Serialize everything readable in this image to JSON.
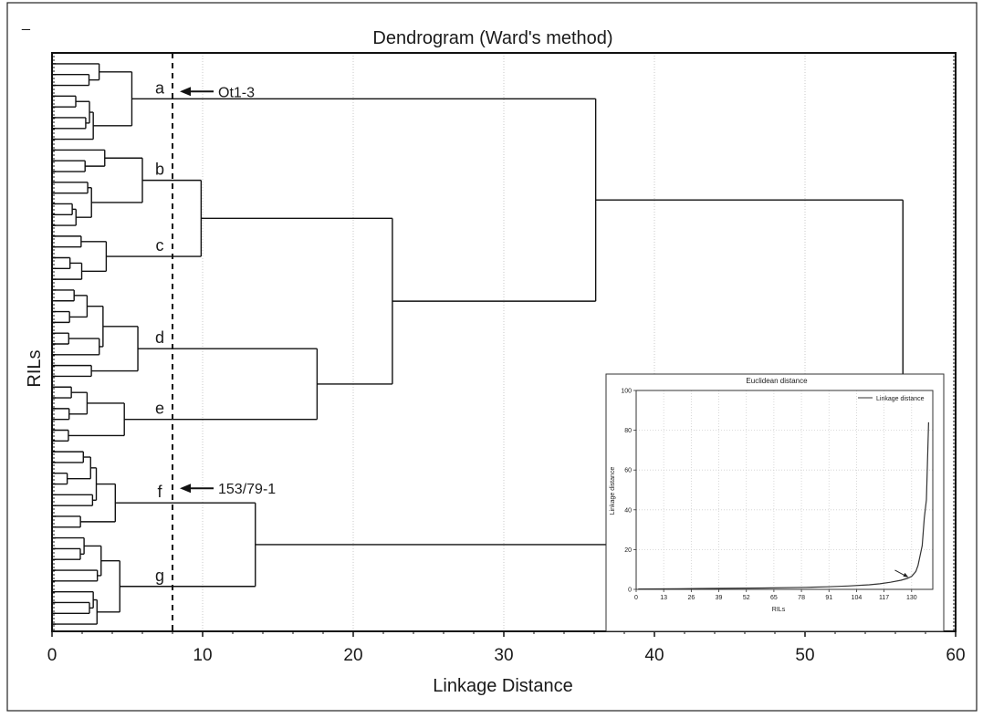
{
  "corner_mark": "_",
  "chart_data": [
    {
      "type": "dendrogram",
      "title": "Dendrogram (Ward's method)",
      "xlabel": "Linkage Distance",
      "ylabel": "RILs",
      "xlim": [
        0,
        60
      ],
      "xticks": [
        0,
        10,
        20,
        30,
        40,
        50,
        60
      ],
      "grid": "vertical gridlines",
      "cutoff_line": {
        "x": 8,
        "style": "dashed"
      },
      "clusters": [
        {
          "label": "a",
          "join_height": 5.3
        },
        {
          "label": "b",
          "join_height": 6.0
        },
        {
          "label": "c",
          "join_height": 3.6
        },
        {
          "label": "d",
          "join_height": 5.7
        },
        {
          "label": "e",
          "join_height": 4.8
        },
        {
          "label": "f",
          "join_height": 4.2
        },
        {
          "label": "g",
          "join_height": 4.5
        }
      ],
      "merges": [
        {
          "children": [
            "b",
            "c"
          ],
          "height": 9.9
        },
        {
          "children": [
            "d",
            "e"
          ],
          "height": 17.6
        },
        {
          "children": [
            "bc",
            "de"
          ],
          "height": 22.6
        },
        {
          "children": [
            "a",
            "bcde"
          ],
          "height": 36.1
        },
        {
          "children": [
            "f",
            "g"
          ],
          "height": 13.5
        },
        {
          "children": [
            "abcde",
            "fg"
          ],
          "height": 56.5
        }
      ],
      "annotations": [
        {
          "text": "Ot1-3",
          "points_to": "cluster a"
        },
        {
          "text": "153/79-1",
          "points_to": "cluster f"
        }
      ]
    },
    {
      "type": "line",
      "title": "Euclidean distance",
      "xlabel": "RILs",
      "ylabel": "Linkage distance",
      "legend": "Linkage distance",
      "legend_position": "top-right",
      "xlim": [
        0,
        140
      ],
      "ylim": [
        0,
        100
      ],
      "xticks": [
        0,
        13,
        26,
        39,
        52,
        65,
        78,
        91,
        104,
        117,
        130
      ],
      "yticks": [
        0,
        20,
        40,
        60,
        80,
        100
      ],
      "series": [
        {
          "name": "Linkage distance",
          "x": [
            1,
            20,
            40,
            60,
            80,
            90,
            100,
            110,
            115,
            120,
            125,
            128,
            130,
            132,
            133,
            134,
            135,
            136,
            137,
            138
          ],
          "y": [
            0.2,
            0.3,
            0.5,
            0.7,
            1.0,
            1.3,
            1.7,
            2.3,
            2.8,
            3.6,
            4.6,
            5.5,
            6.5,
            9,
            12,
            17,
            22,
            36,
            45,
            84
          ]
        }
      ],
      "annotation": "arrow near x≈129"
    }
  ]
}
